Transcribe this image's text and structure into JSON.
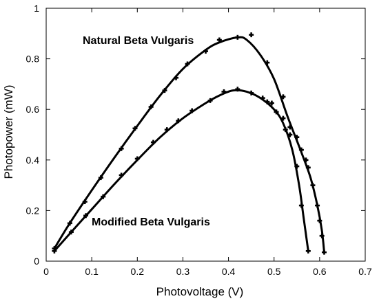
{
  "chart_data": {
    "type": "scatter",
    "title": "",
    "xlabel": "Photovoltage (V)",
    "ylabel": "Photopower (mW)",
    "xlim": [
      0,
      0.7
    ],
    "ylim": [
      0,
      1
    ],
    "x_ticks": [
      "0",
      "0.1",
      "0.2",
      "0.3",
      "0.4",
      "0.5",
      "0.6",
      "0.7"
    ],
    "y_ticks": [
      "0",
      "0.2",
      "0.4",
      "0.6",
      "0.8",
      "1"
    ],
    "grid": false,
    "legend": "none",
    "annotations": [
      "Natural Beta Vulgaris",
      "Modified Beta Vulgaris"
    ],
    "series": [
      {
        "points": [
          [
            0.018,
            0.05
          ],
          [
            0.052,
            0.15
          ],
          [
            0.085,
            0.235
          ],
          [
            0.12,
            0.33
          ],
          [
            0.165,
            0.445
          ],
          [
            0.195,
            0.525
          ],
          [
            0.23,
            0.61
          ],
          [
            0.26,
            0.675
          ],
          [
            0.285,
            0.725
          ],
          [
            0.31,
            0.78
          ],
          [
            0.35,
            0.83
          ],
          [
            0.38,
            0.875
          ],
          [
            0.42,
            0.885
          ],
          [
            0.45,
            0.895
          ],
          [
            0.485,
            0.785
          ],
          [
            0.52,
            0.65
          ],
          [
            0.535,
            0.53
          ],
          [
            0.55,
            0.49
          ],
          [
            0.56,
            0.44
          ],
          [
            0.57,
            0.4
          ],
          [
            0.575,
            0.37
          ],
          [
            0.585,
            0.3
          ],
          [
            0.595,
            0.22
          ],
          [
            0.6,
            0.16
          ],
          [
            0.605,
            0.1
          ],
          [
            0.61,
            0.035
          ]
        ],
        "curve": [
          [
            0.018,
            0.05
          ],
          [
            0.05,
            0.145
          ],
          [
            0.1,
            0.28
          ],
          [
            0.15,
            0.41
          ],
          [
            0.2,
            0.535
          ],
          [
            0.25,
            0.655
          ],
          [
            0.3,
            0.76
          ],
          [
            0.35,
            0.835
          ],
          [
            0.38,
            0.865
          ],
          [
            0.42,
            0.885
          ],
          [
            0.44,
            0.875
          ],
          [
            0.47,
            0.815
          ],
          [
            0.5,
            0.72
          ],
          [
            0.53,
            0.57
          ],
          [
            0.56,
            0.43
          ],
          [
            0.58,
            0.33
          ],
          [
            0.595,
            0.22
          ],
          [
            0.605,
            0.12
          ],
          [
            0.61,
            0.035
          ]
        ]
      },
      {
        "points": [
          [
            0.018,
            0.04
          ],
          [
            0.055,
            0.115
          ],
          [
            0.087,
            0.18
          ],
          [
            0.125,
            0.255
          ],
          [
            0.165,
            0.34
          ],
          [
            0.2,
            0.405
          ],
          [
            0.235,
            0.47
          ],
          [
            0.265,
            0.52
          ],
          [
            0.29,
            0.555
          ],
          [
            0.32,
            0.595
          ],
          [
            0.36,
            0.635
          ],
          [
            0.39,
            0.67
          ],
          [
            0.42,
            0.68
          ],
          [
            0.45,
            0.665
          ],
          [
            0.475,
            0.645
          ],
          [
            0.485,
            0.63
          ],
          [
            0.495,
            0.625
          ],
          [
            0.505,
            0.59
          ],
          [
            0.52,
            0.565
          ],
          [
            0.525,
            0.52
          ],
          [
            0.535,
            0.5
          ],
          [
            0.55,
            0.375
          ],
          [
            0.56,
            0.22
          ],
          [
            0.575,
            0.04
          ]
        ],
        "curve": [
          [
            0.018,
            0.04
          ],
          [
            0.05,
            0.105
          ],
          [
            0.1,
            0.205
          ],
          [
            0.15,
            0.305
          ],
          [
            0.2,
            0.4
          ],
          [
            0.25,
            0.49
          ],
          [
            0.3,
            0.565
          ],
          [
            0.35,
            0.625
          ],
          [
            0.38,
            0.655
          ],
          [
            0.41,
            0.675
          ],
          [
            0.44,
            0.67
          ],
          [
            0.47,
            0.645
          ],
          [
            0.5,
            0.6
          ],
          [
            0.52,
            0.545
          ],
          [
            0.54,
            0.44
          ],
          [
            0.555,
            0.3
          ],
          [
            0.565,
            0.17
          ],
          [
            0.575,
            0.04
          ]
        ]
      }
    ]
  }
}
